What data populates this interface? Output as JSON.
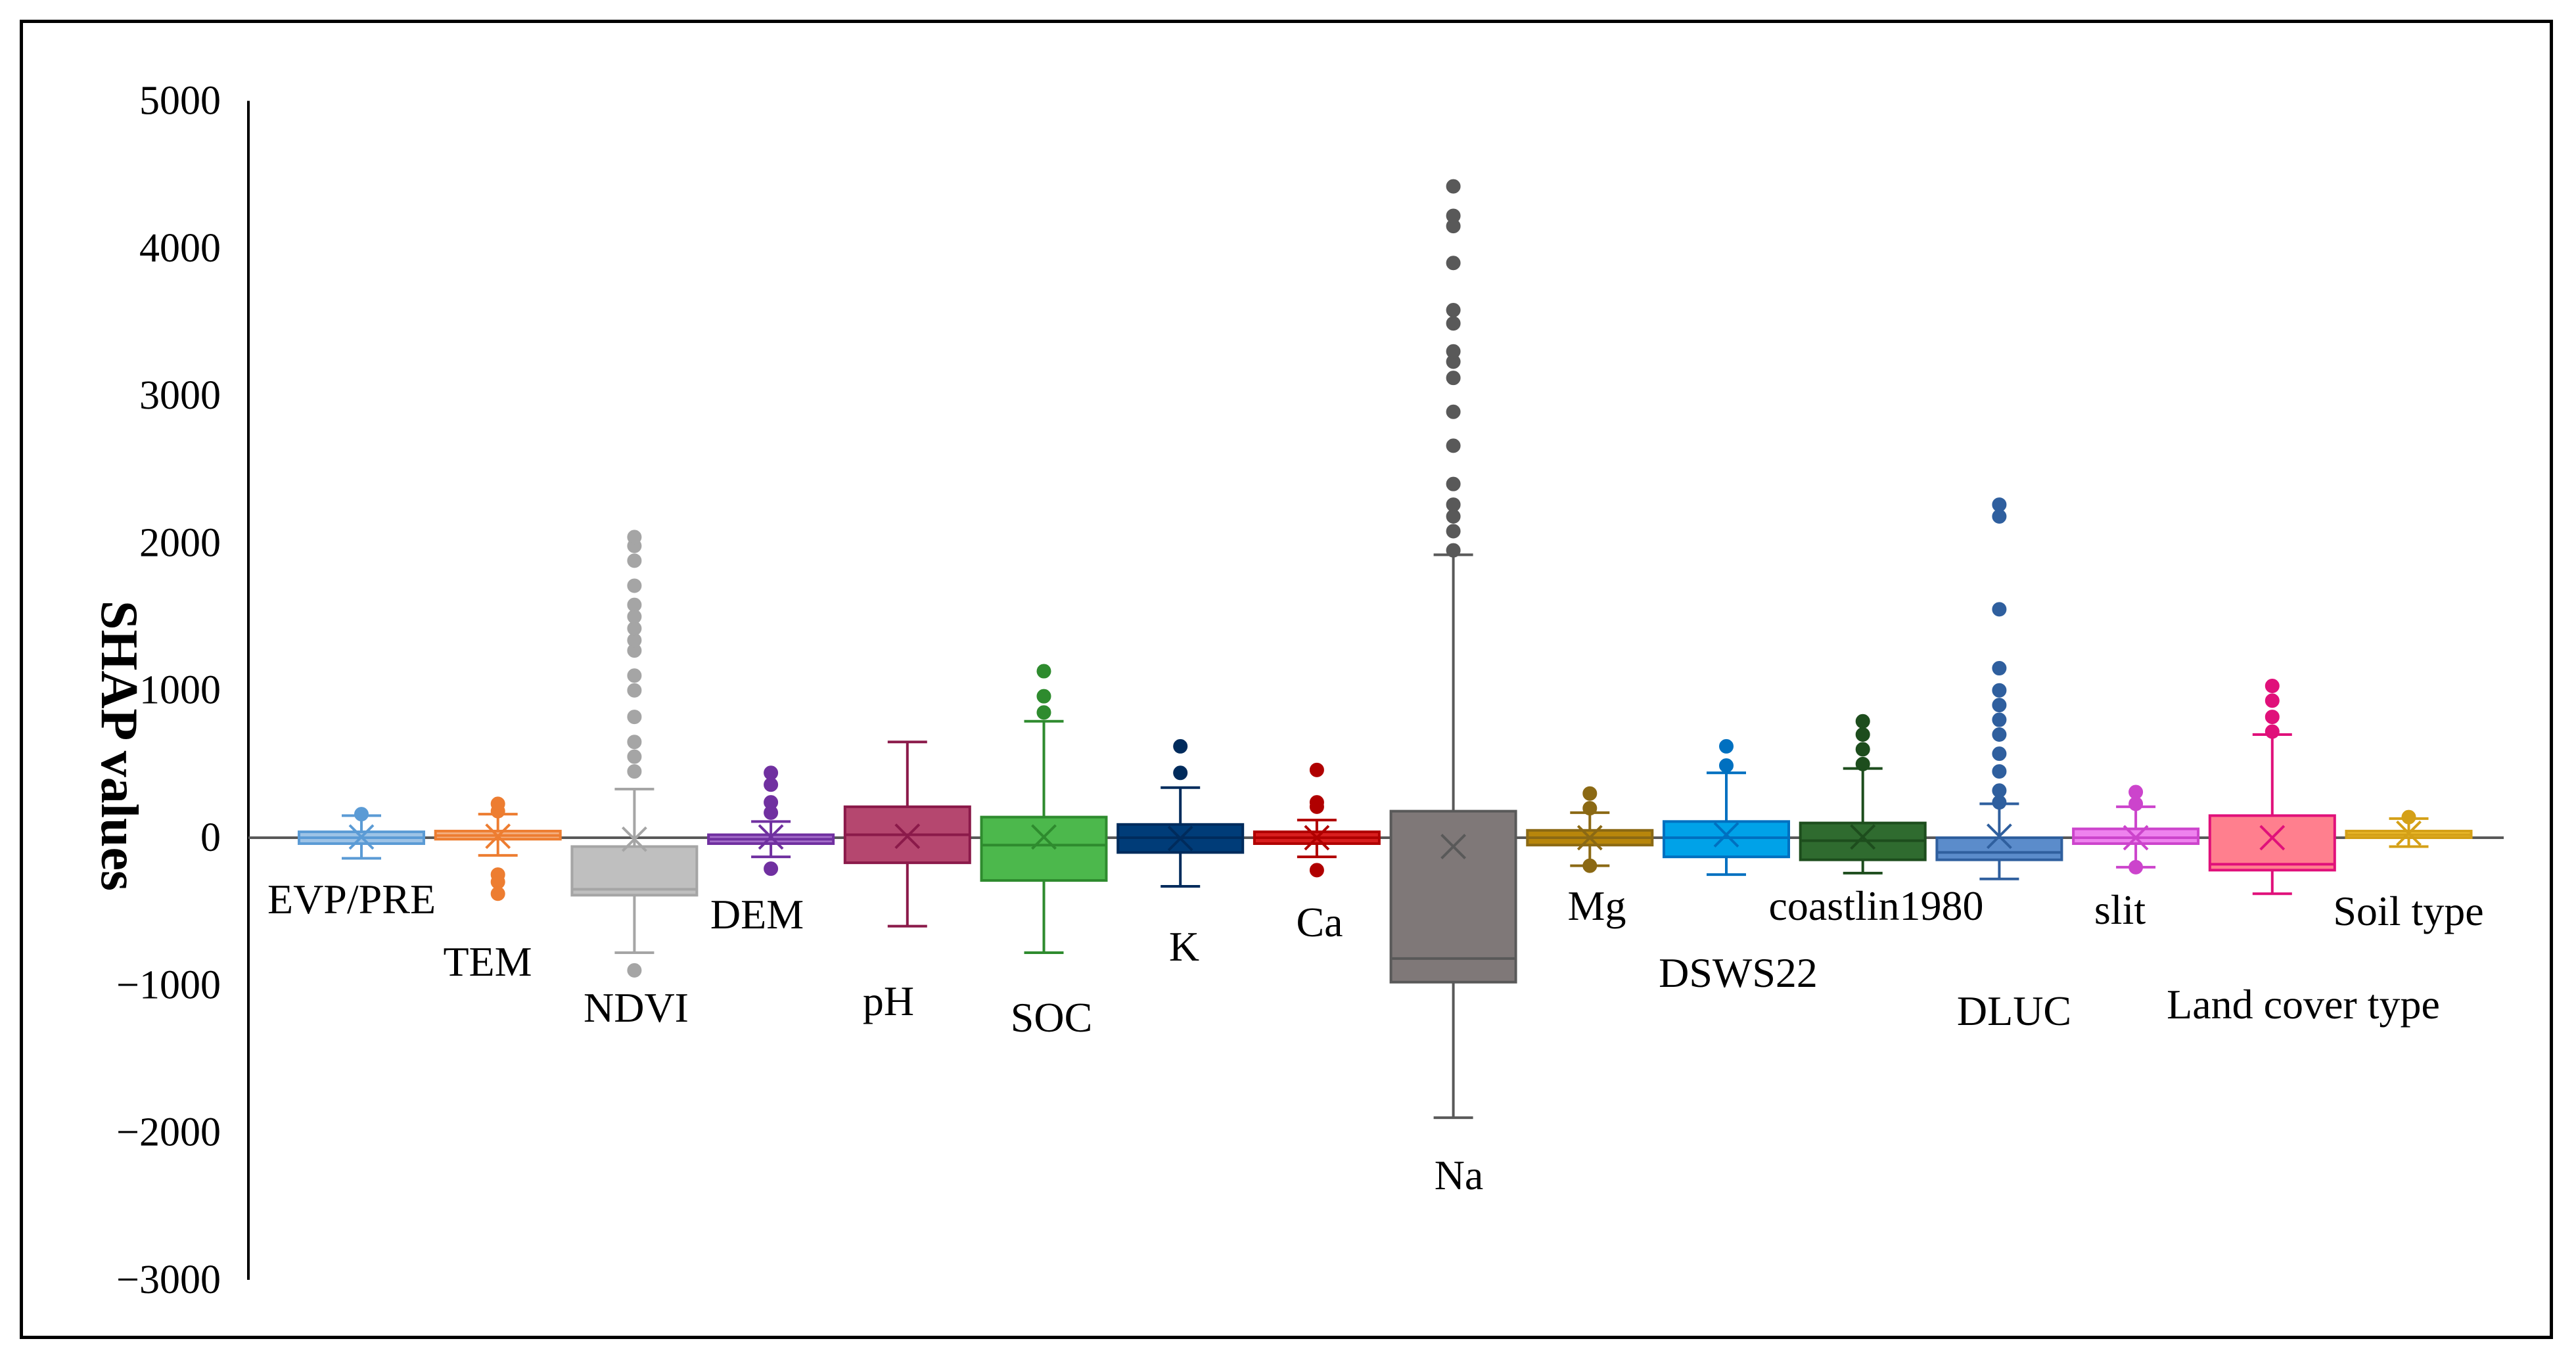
{
  "chart_data": {
    "type": "box",
    "title": "",
    "xlabel": "",
    "ylabel": "SHAP values",
    "ylim": [
      -3000,
      5000
    ],
    "yticks": [
      5000,
      4000,
      3000,
      2000,
      1000,
      0,
      -1000,
      -2000,
      -3000
    ],
    "ytick_labels": [
      "5000",
      "4000",
      "3000",
      "2000",
      "1000",
      "0",
      "−1000",
      "−2000",
      "−3000"
    ],
    "grid": false,
    "legend": "none",
    "series": [
      {
        "name": "EVP/PRE",
        "color": "#5B9BD5",
        "fill": "#9DC3E6",
        "min": -140,
        "q1": -40,
        "median": 0,
        "q3": 40,
        "max": 150,
        "mean": 5,
        "outliers": [
          160
        ]
      },
      {
        "name": "TEM",
        "color": "#ED7D31",
        "fill": "#F4B183",
        "min": -120,
        "q1": -10,
        "median": 15,
        "q3": 45,
        "max": 160,
        "mean": 10,
        "outliers": [
          -250,
          -300,
          -380,
          180,
          230
        ]
      },
      {
        "name": "NDVI",
        "color": "#A5A5A5",
        "fill": "#BFBFBF",
        "min": -780,
        "q1": -390,
        "median": -350,
        "q3": -60,
        "max": 330,
        "mean": -10,
        "outliers": [
          -900,
          450,
          550,
          650,
          820,
          1000,
          1100,
          1270,
          1340,
          1420,
          1500,
          1580,
          1710,
          1880,
          1980,
          2040
        ]
      },
      {
        "name": "DEM",
        "color": "#7030A0",
        "fill": "#A56FCB",
        "min": -130,
        "q1": -40,
        "median": -10,
        "q3": 20,
        "max": 110,
        "mean": 5,
        "outliers": [
          -210,
          170,
          240,
          360,
          440
        ]
      },
      {
        "name": "pH",
        "color": "#8B1A4A",
        "fill": "#B5476F",
        "min": -600,
        "q1": -170,
        "median": 20,
        "q3": 210,
        "max": 650,
        "mean": 10,
        "outliers": []
      },
      {
        "name": "SOC",
        "color": "#2E8B2E",
        "fill": "#4CB84C",
        "min": -780,
        "q1": -290,
        "median": -50,
        "q3": 140,
        "max": 790,
        "mean": 5,
        "outliers": [
          850,
          960,
          1130
        ]
      },
      {
        "name": "K",
        "color": "#002B5C",
        "fill": "#003C78",
        "min": -330,
        "q1": -100,
        "median": 0,
        "q3": 90,
        "max": 340,
        "mean": -5,
        "outliers": [
          440,
          620
        ]
      },
      {
        "name": "Ca",
        "color": "#B00000",
        "fill": "#D81E1E",
        "min": -130,
        "q1": -40,
        "median": 0,
        "q3": 40,
        "max": 120,
        "mean": 0,
        "outliers": [
          -220,
          210,
          240,
          460
        ]
      },
      {
        "name": "Na",
        "color": "#595959",
        "fill": "#7F7878",
        "min": -1900,
        "q1": -980,
        "median": -820,
        "q3": 180,
        "max": 1920,
        "mean": -60,
        "outliers": [
          1950,
          2080,
          2180,
          2260,
          2400,
          2660,
          2890,
          3120,
          3230,
          3300,
          3490,
          3580,
          3900,
          4150,
          4220,
          4420
        ]
      },
      {
        "name": "Mg",
        "color": "#8B6914",
        "fill": "#B8860B",
        "min": -190,
        "q1": -50,
        "median": 0,
        "q3": 50,
        "max": 170,
        "mean": 0,
        "outliers": [
          -190,
          200,
          300
        ]
      },
      {
        "name": "DSWS22",
        "color": "#0070C0",
        "fill": "#00A2E8",
        "min": -250,
        "q1": -130,
        "median": 0,
        "q3": 110,
        "max": 440,
        "mean": 20,
        "outliers": [
          490,
          620
        ]
      },
      {
        "name": "coastlin1980",
        "color": "#1D4D1D",
        "fill": "#2F6B2F",
        "min": -240,
        "q1": -150,
        "median": -20,
        "q3": 100,
        "max": 470,
        "mean": 5,
        "outliers": [
          500,
          600,
          700,
          790
        ]
      },
      {
        "name": "DLUC",
        "color": "#2F5F9E",
        "fill": "#5B8CCB",
        "min": -280,
        "q1": -150,
        "median": -100,
        "q3": 0,
        "max": 230,
        "mean": 10,
        "outliers": [
          240,
          320,
          450,
          570,
          700,
          800,
          900,
          1000,
          1150,
          1550,
          2180,
          2260
        ]
      },
      {
        "name": "slit",
        "color": "#CC44CC",
        "fill": "#EE82EE",
        "min": -200,
        "q1": -40,
        "median": 0,
        "q3": 60,
        "max": 210,
        "mean": 0,
        "outliers": [
          -200,
          230,
          310
        ]
      },
      {
        "name": "Land cover type",
        "color": "#E0107A",
        "fill": "#FF7F8E",
        "min": -380,
        "q1": -220,
        "median": -180,
        "q3": 150,
        "max": 700,
        "mean": 0,
        "outliers": [
          720,
          820,
          930,
          1030
        ]
      },
      {
        "name": "Soil type",
        "color": "#D4A017",
        "fill": "#F0C030",
        "min": -60,
        "q1": 0,
        "median": 20,
        "q3": 45,
        "max": 130,
        "mean": 30,
        "outliers": [
          140
        ]
      }
    ]
  }
}
